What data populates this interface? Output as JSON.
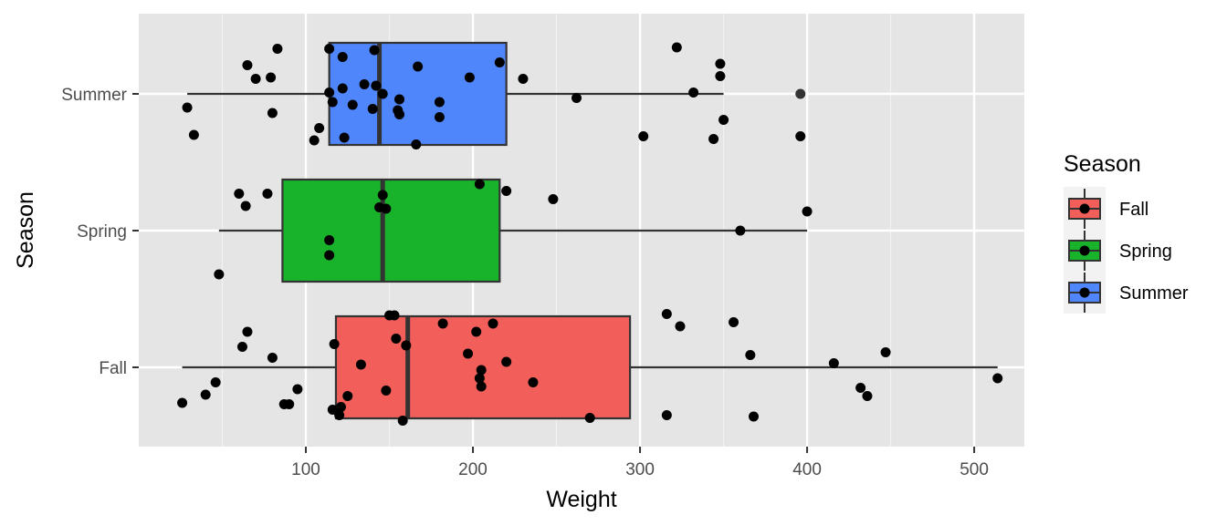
{
  "chart_data": {
    "type": "boxplot",
    "orientation": "horizontal",
    "xlabel": "Weight",
    "ylabel": "Season",
    "xlim": [
      0,
      530
    ],
    "x_ticks": [
      100,
      200,
      300,
      400,
      500
    ],
    "categories": [
      "Fall",
      "Spring",
      "Summer"
    ],
    "grid": true,
    "background": "#e5e5e5",
    "legend": {
      "title": "Season",
      "position": "right",
      "entries": [
        "Fall",
        "Spring",
        "Summer"
      ]
    },
    "colors": {
      "Fall": "#f25e5a",
      "Spring": "#19b22b",
      "Summer": "#4f86fb"
    },
    "boxes": [
      {
        "name": "Fall",
        "whisker_low": 26,
        "q1": 118,
        "median": 161,
        "q3": 294,
        "whisker_high": 514
      },
      {
        "name": "Spring",
        "whisker_low": 48,
        "q1": 86,
        "median": 146,
        "q3": 216,
        "whisker_high": 400
      },
      {
        "name": "Summer",
        "whisker_low": 29,
        "q1": 114,
        "median": 144,
        "q3": 220,
        "whisker_high": 350
      }
    ],
    "outliers": [
      {
        "name": "Summer",
        "x": 396
      }
    ],
    "points": [
      {
        "name": "Fall",
        "values": [
          [
            26,
            -0.26
          ],
          [
            40,
            -0.2
          ],
          [
            46,
            -0.11
          ],
          [
            62,
            0.15
          ],
          [
            65,
            0.26
          ],
          [
            80,
            0.07
          ],
          [
            87,
            -0.27
          ],
          [
            90,
            -0.27
          ],
          [
            95,
            -0.16
          ],
          [
            116,
            -0.31
          ],
          [
            117,
            0.17
          ],
          [
            120,
            -0.35
          ],
          [
            121,
            -0.29
          ],
          [
            125,
            -0.21
          ],
          [
            133,
            0.02
          ],
          [
            148,
            -0.17
          ],
          [
            150,
            0.38
          ],
          [
            153,
            0.38
          ],
          [
            154,
            0.21
          ],
          [
            158,
            -0.39
          ],
          [
            160,
            0.16
          ],
          [
            182,
            0.32
          ],
          [
            197,
            0.1
          ],
          [
            202,
            0.26
          ],
          [
            204,
            -0.08
          ],
          [
            205,
            -0.02
          ],
          [
            205,
            -0.14
          ],
          [
            212,
            0.32
          ],
          [
            220,
            0.04
          ],
          [
            236,
            -0.11
          ],
          [
            270,
            -0.37
          ],
          [
            316,
            -0.35
          ],
          [
            316,
            0.39
          ],
          [
            324,
            0.3
          ],
          [
            356,
            0.33
          ],
          [
            366,
            0.09
          ],
          [
            368,
            -0.36
          ],
          [
            416,
            0.03
          ],
          [
            432,
            -0.15
          ],
          [
            436,
            -0.21
          ],
          [
            447,
            0.11
          ],
          [
            514,
            -0.08
          ]
        ]
      },
      {
        "name": "Spring",
        "values": [
          [
            48,
            -0.32
          ],
          [
            60,
            0.27
          ],
          [
            64,
            0.18
          ],
          [
            77,
            0.27
          ],
          [
            114,
            -0.18
          ],
          [
            114,
            -0.07
          ],
          [
            144,
            0.17
          ],
          [
            146,
            0.26
          ],
          [
            148,
            0.16
          ],
          [
            204,
            0.34
          ],
          [
            220,
            0.29
          ],
          [
            248,
            0.23
          ],
          [
            360,
            0.0
          ],
          [
            400,
            0.14
          ]
        ]
      },
      {
        "name": "Summer",
        "values": [
          [
            29,
            -0.1
          ],
          [
            33,
            -0.3
          ],
          [
            65,
            0.21
          ],
          [
            70,
            0.11
          ],
          [
            79,
            0.12
          ],
          [
            80,
            -0.14
          ],
          [
            83,
            0.33
          ],
          [
            105,
            -0.34
          ],
          [
            108,
            -0.25
          ],
          [
            114,
            0.33
          ],
          [
            114,
            0.01
          ],
          [
            116,
            -0.06
          ],
          [
            122,
            0.27
          ],
          [
            122,
            0.04
          ],
          [
            123,
            -0.32
          ],
          [
            128,
            -0.08
          ],
          [
            135,
            0.07
          ],
          [
            140,
            -0.11
          ],
          [
            141,
            0.32
          ],
          [
            142,
            0.06
          ],
          [
            146,
            0.0
          ],
          [
            155,
            -0.12
          ],
          [
            156,
            -0.15
          ],
          [
            156,
            -0.04
          ],
          [
            166,
            -0.37
          ],
          [
            167,
            0.2
          ],
          [
            180,
            -0.17
          ],
          [
            180,
            -0.06
          ],
          [
            198,
            0.12
          ],
          [
            216,
            0.23
          ],
          [
            230,
            0.11
          ],
          [
            262,
            -0.03
          ],
          [
            302,
            -0.31
          ],
          [
            322,
            0.34
          ],
          [
            332,
            0.01
          ],
          [
            344,
            -0.33
          ],
          [
            348,
            0.22
          ],
          [
            348,
            0.13
          ],
          [
            350,
            -0.19
          ],
          [
            396,
            -0.31
          ]
        ]
      }
    ]
  }
}
